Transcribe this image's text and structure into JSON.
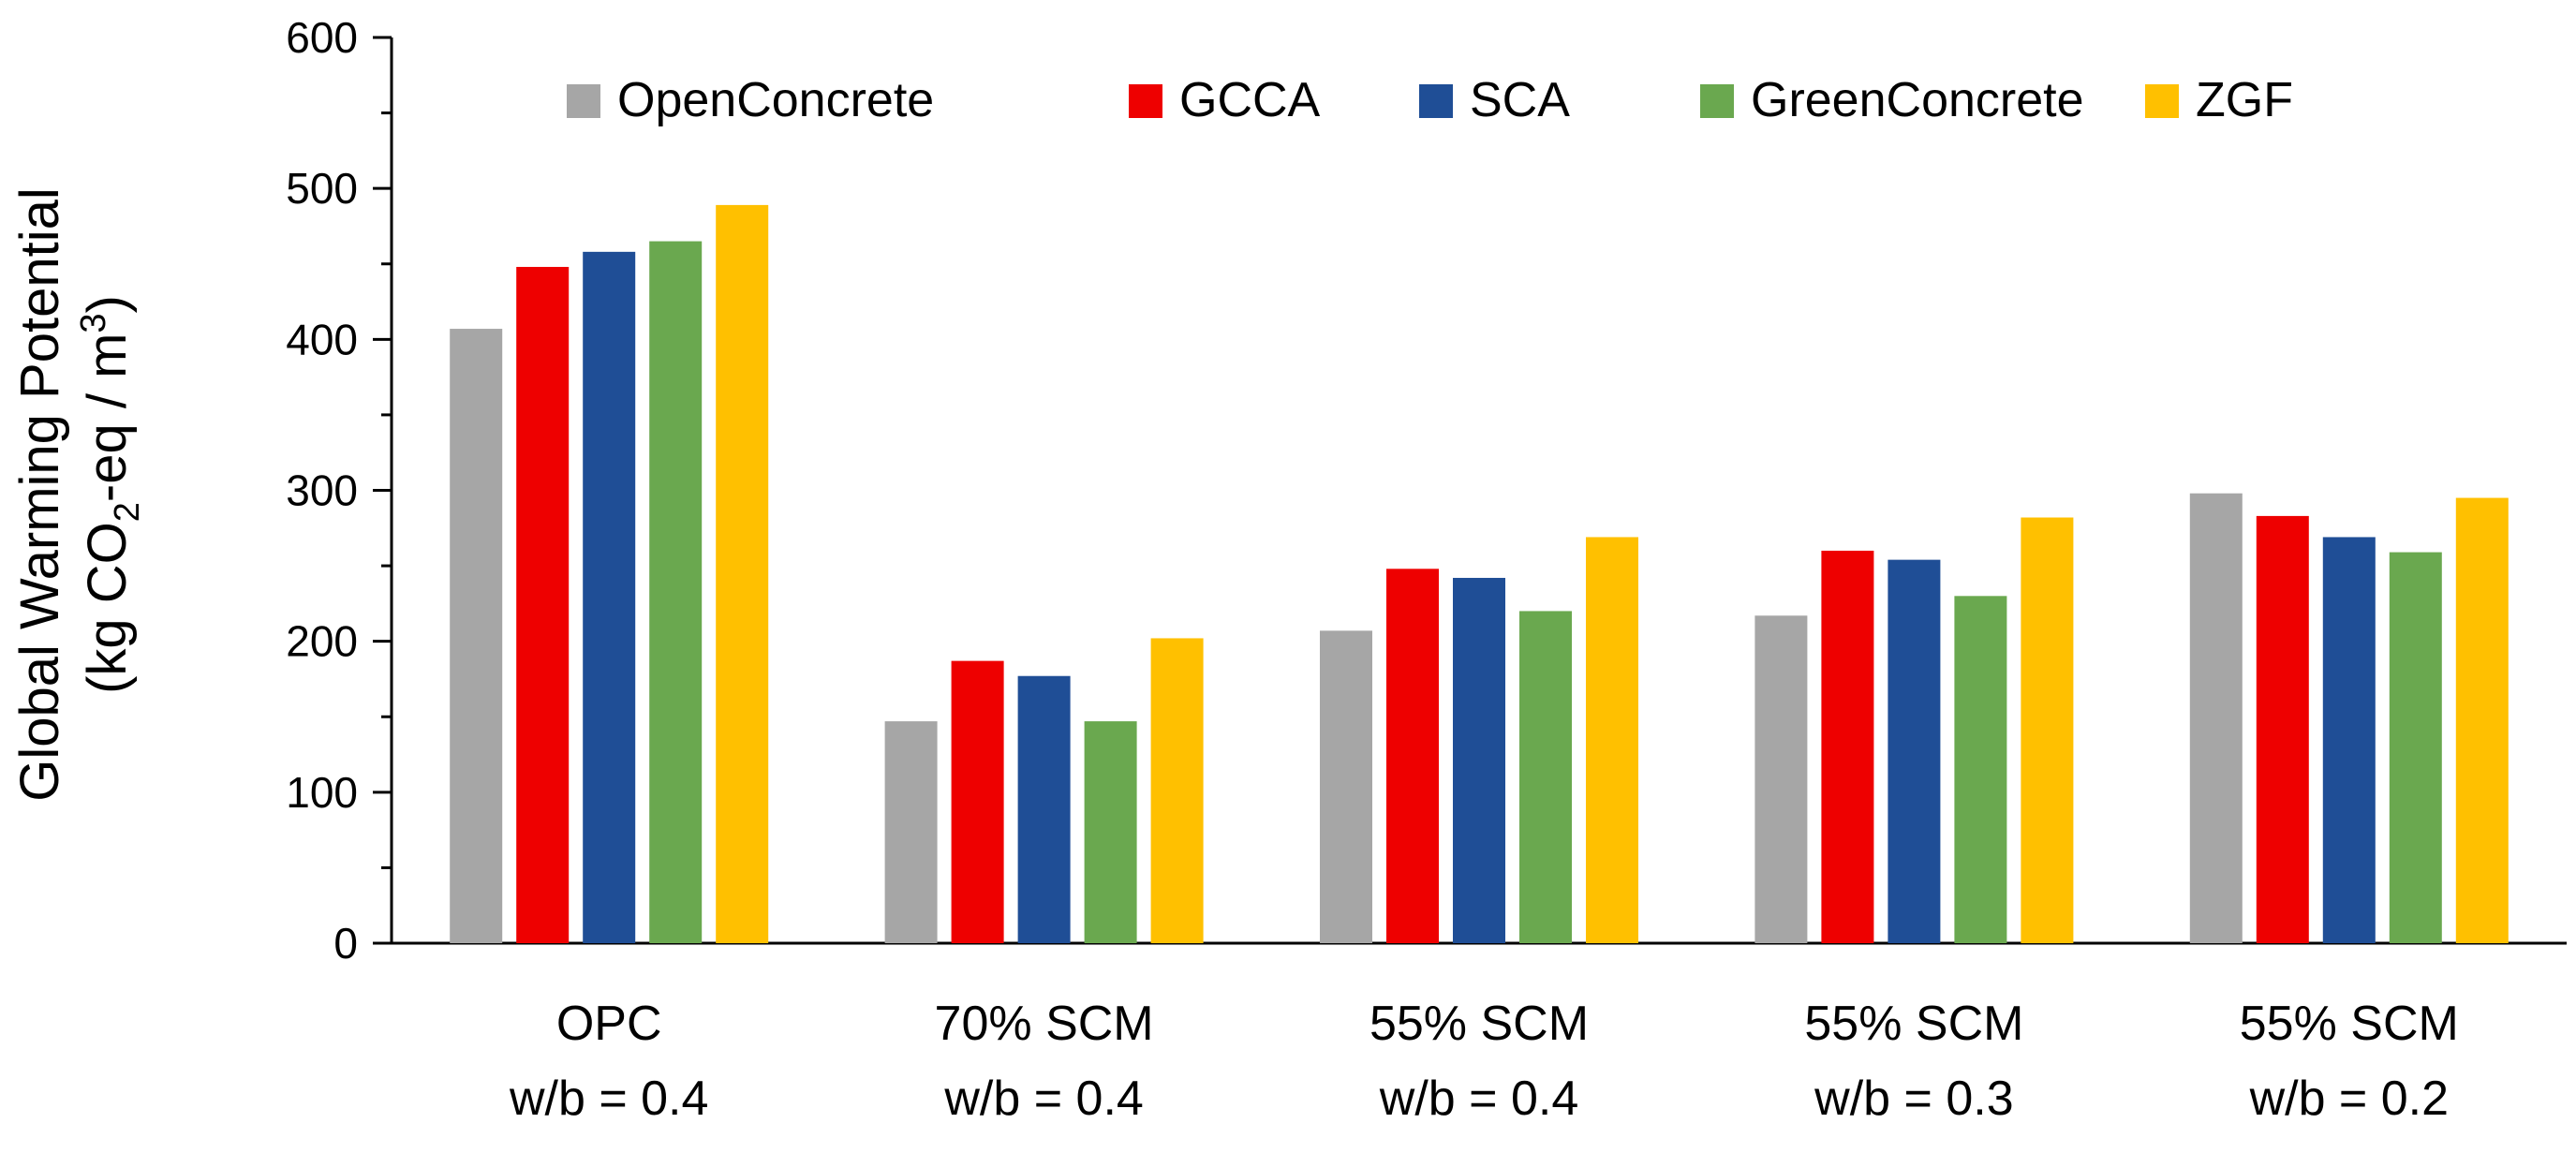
{
  "chart_data": {
    "type": "bar",
    "title": "",
    "xlabel": "",
    "ylabel": {
      "line1": "Global Warming Potential",
      "line2_prefix": "(kg CO",
      "line2_sub": "2",
      "line2_mid": "-eq / m",
      "line2_sup": "3",
      "line2_suffix": ")"
    },
    "ylim": [
      0,
      600
    ],
    "yticks": [
      0,
      100,
      200,
      300,
      400,
      500,
      600
    ],
    "grid": false,
    "legend_position": "top",
    "categories": [
      {
        "line1": "OPC",
        "line2": "w/b = 0.4"
      },
      {
        "line1": "70% SCM",
        "line2": "w/b = 0.4"
      },
      {
        "line1": "55% SCM",
        "line2": "w/b = 0.4"
      },
      {
        "line1": "55% SCM",
        "line2": "w/b = 0.3"
      },
      {
        "line1": "55% SCM",
        "line2": "w/b = 0.2"
      }
    ],
    "series": [
      {
        "name": "OpenConcrete",
        "color": "#A6A6A6",
        "values": [
          407,
          147,
          207,
          217,
          298
        ]
      },
      {
        "name": "GCCA",
        "color": "#EE0000",
        "values": [
          448,
          187,
          248,
          260,
          283
        ]
      },
      {
        "name": "SCA",
        "color": "#1F4E96",
        "values": [
          458,
          177,
          242,
          254,
          269
        ]
      },
      {
        "name": "GreenConcrete",
        "color": "#6AA84F",
        "values": [
          465,
          147,
          220,
          230,
          259
        ]
      },
      {
        "name": "ZGF",
        "color": "#FFC000",
        "values": [
          489,
          202,
          269,
          282,
          295
        ]
      }
    ]
  }
}
